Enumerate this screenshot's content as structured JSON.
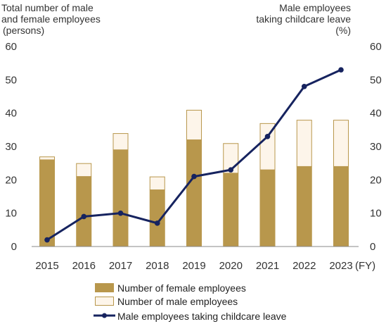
{
  "chart_data": {
    "type": "bar",
    "left_axis_title_lines": [
      "Total number of male",
      "and female employees",
      "(persons)"
    ],
    "right_axis_title_lines": [
      "Male employees",
      "taking childcare leave",
      "(%)"
    ],
    "x_unit": "(FY)",
    "categories": [
      "2015",
      "2016",
      "2017",
      "2018",
      "2019",
      "2020",
      "2021",
      "2022",
      "2023"
    ],
    "ylim_left": [
      0,
      60
    ],
    "ylim_right": [
      0,
      60
    ],
    "yticks": [
      0,
      10,
      20,
      30,
      40,
      50,
      60
    ],
    "series": [
      {
        "name": "Number of female employees",
        "kind": "bar-stacked",
        "axis": "left",
        "color": "#B8974C",
        "values": [
          26,
          21,
          29,
          17,
          32,
          22,
          23,
          24,
          24
        ]
      },
      {
        "name": "Number of male employees",
        "kind": "bar-stacked",
        "axis": "left",
        "color": "#FDF5EA",
        "values": [
          1,
          4,
          5,
          4,
          9,
          9,
          14,
          14,
          14
        ]
      },
      {
        "name": "Male employees taking childcare leave",
        "kind": "line",
        "axis": "right",
        "color": "#16235F",
        "values": [
          2,
          9,
          10,
          7,
          21,
          23,
          33,
          48,
          53
        ]
      }
    ],
    "grid": false,
    "legend_position": "bottom"
  }
}
